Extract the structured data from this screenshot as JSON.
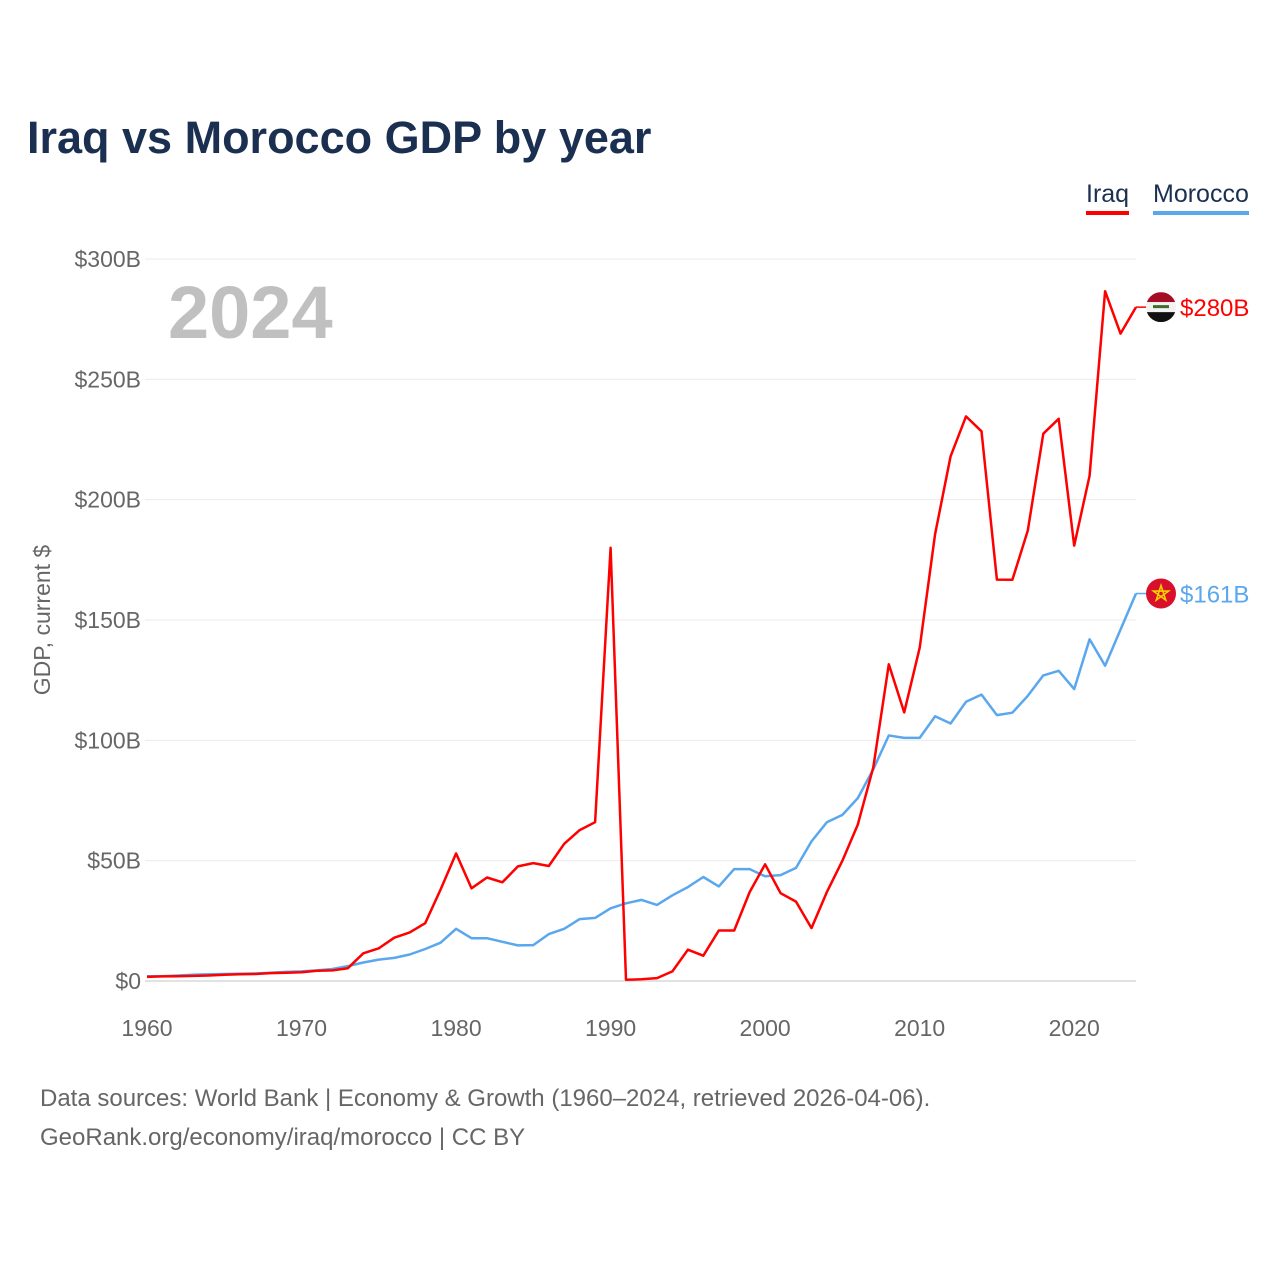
{
  "chart_data": {
    "type": "line",
    "title": "Iraq vs Morocco GDP by year",
    "ylabel": "GDP, current $",
    "xlabel": "",
    "year_label": "2024",
    "ylim": [
      0,
      300
    ],
    "xlim": [
      1960,
      2024
    ],
    "yticks": [
      0,
      50,
      100,
      150,
      200,
      250,
      300
    ],
    "ytick_labels": [
      "$0",
      "$50B",
      "$100B",
      "$150B",
      "$200B",
      "$250B",
      "$300B"
    ],
    "xticks": [
      1960,
      1970,
      1980,
      1990,
      2000,
      2010,
      2020
    ],
    "xtick_labels": [
      "1960",
      "1970",
      "1980",
      "1990",
      "2000",
      "2010",
      "2020"
    ],
    "grid": true,
    "legend_position": "top-right",
    "x": [
      1960,
      1961,
      1962,
      1963,
      1964,
      1965,
      1966,
      1967,
      1968,
      1969,
      1970,
      1971,
      1972,
      1973,
      1974,
      1975,
      1976,
      1977,
      1978,
      1979,
      1980,
      1981,
      1982,
      1983,
      1984,
      1985,
      1986,
      1987,
      1988,
      1989,
      1990,
      1991,
      1992,
      1993,
      1994,
      1995,
      1996,
      1997,
      1998,
      1999,
      2000,
      2001,
      2002,
      2003,
      2004,
      2005,
      2006,
      2007,
      2008,
      2009,
      2010,
      2011,
      2012,
      2013,
      2014,
      2015,
      2016,
      2017,
      2018,
      2019,
      2020,
      2021,
      2022,
      2023,
      2024
    ],
    "series": [
      {
        "name": "Iraq",
        "color": "#ff0000",
        "end_label": "$280B",
        "flag": "iraq-flag",
        "values": [
          1.7,
          1.9,
          2.0,
          2.1,
          2.3,
          2.6,
          2.8,
          2.9,
          3.3,
          3.4,
          3.6,
          4.3,
          4.4,
          5.3,
          11.5,
          13.6,
          18,
          20.2,
          24,
          38,
          53,
          38.5,
          43,
          41,
          47.6,
          49,
          47.8,
          57,
          62.7,
          66,
          180,
          0.5,
          0.7,
          1.2,
          4,
          13,
          10.5,
          21,
          21,
          37,
          48.5,
          36.5,
          33,
          22,
          37,
          50,
          65,
          88.8,
          131.6,
          111.6,
          138.5,
          185.7,
          218,
          234.6,
          228.4,
          166.8,
          166.7,
          187.2,
          227.4,
          233.6,
          180.9,
          210,
          286.6,
          269,
          280
        ]
      },
      {
        "name": "Morocco",
        "color": "#5aa7ee",
        "end_label": "$161B",
        "flag": "morocco-flag",
        "values": [
          2.0,
          2.0,
          2.3,
          2.6,
          2.8,
          2.9,
          3.0,
          3.1,
          3.4,
          3.8,
          4.0,
          4.4,
          5.0,
          6.2,
          7.7,
          8.9,
          9.6,
          11.0,
          13.3,
          15.9,
          21.7,
          17.8,
          17.8,
          16.3,
          14.8,
          14.9,
          19.5,
          21.7,
          25.7,
          26.2,
          30.2,
          32.3,
          33.7,
          31.6,
          35.6,
          39.0,
          43.2,
          39.3,
          46.5,
          46.5,
          43.5,
          44,
          47,
          58,
          66,
          69,
          76,
          88,
          102,
          101,
          101,
          110,
          107,
          116,
          119,
          110.5,
          111.5,
          118.5,
          127,
          128.9,
          121.3,
          142,
          131,
          146,
          161
        ]
      }
    ]
  },
  "footer": {
    "line1": "Data sources: World Bank | Economy & Growth (1960–2024, retrieved 2026-04-06).",
    "line2": "GeoRank.org/economy/iraq/morocco | CC BY"
  }
}
